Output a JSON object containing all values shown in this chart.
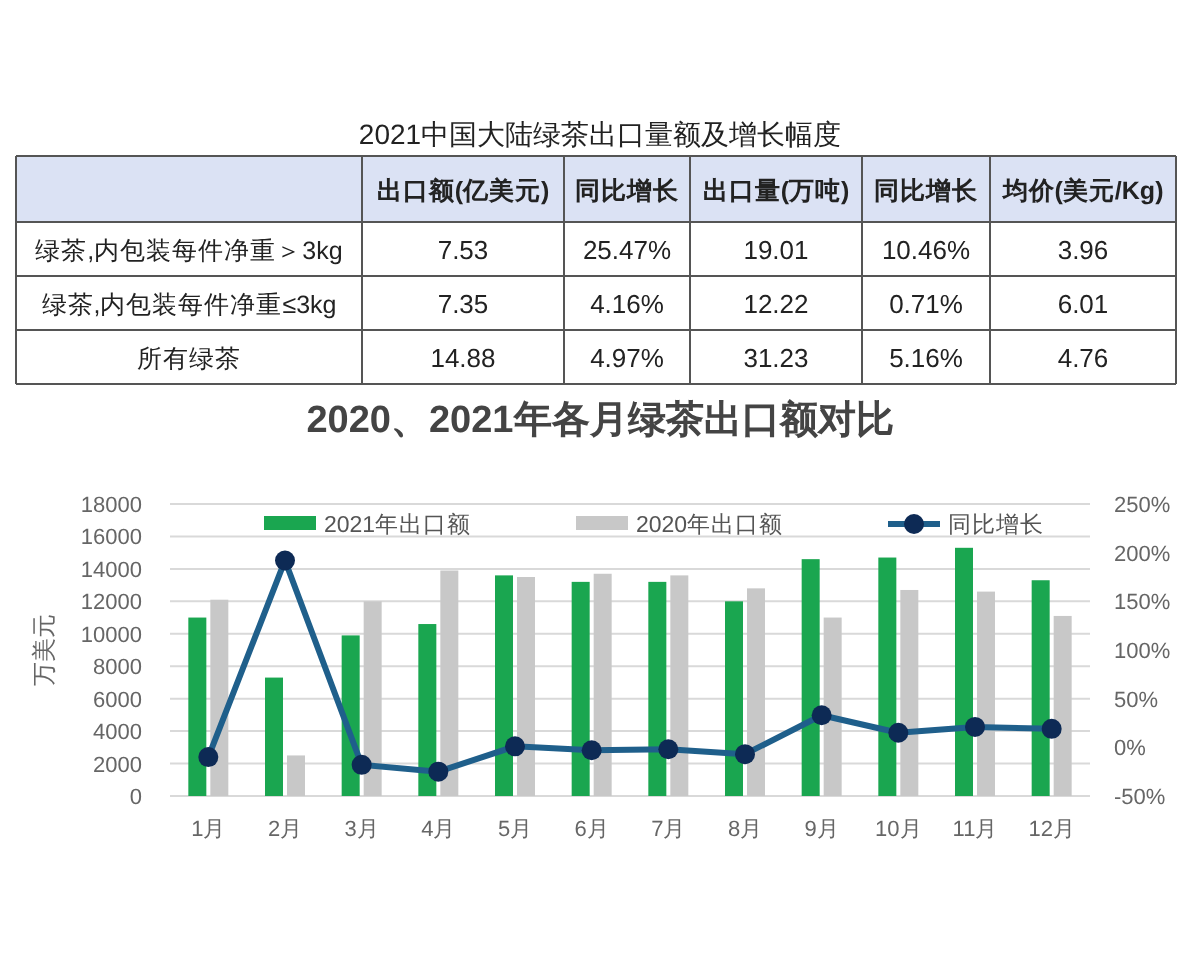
{
  "chart_data": [
    {
      "type": "other",
      "title": "2021中国大陆绿茶出口量额及增长幅度",
      "categories": [
        "出口额(亿美元)",
        "同比增长",
        "出口量(万吨)",
        "同比增长",
        "均价(美元/Kg)"
      ],
      "y_categories": [
        "绿茶,内包装每件净重＞3kg",
        "绿茶,内包装每件净重≤3kg",
        "所有绿茶"
      ],
      "cell_labels": [
        [
          "7.53",
          "25.47%",
          "19.01",
          "10.46%",
          "3.96"
        ],
        [
          "7.35",
          "4.16%",
          "12.22",
          "0.71%",
          "6.01"
        ],
        [
          "14.88",
          "4.97%",
          "31.23",
          "5.16%",
          "4.76"
        ]
      ]
    },
    {
      "type": "bar",
      "title": "2020、2021年各月绿茶出口额对比",
      "ylabel": "万美元",
      "categories": [
        "1月",
        "2月",
        "3月",
        "4月",
        "5月",
        "6月",
        "7月",
        "8月",
        "9月",
        "10月",
        "11月",
        "12月"
      ],
      "series": [
        {
          "name": "2021年出口额",
          "color": "#1aa650",
          "values": [
            11000,
            7300,
            9900,
            10600,
            13600,
            13200,
            13200,
            12000,
            14600,
            14700,
            15300,
            13300
          ]
        },
        {
          "name": "2020年出口额",
          "color": "#c8c8c8",
          "values": [
            12100,
            2500,
            12000,
            13900,
            13500,
            13700,
            13600,
            12800,
            11000,
            12700,
            12600,
            11100
          ]
        },
        {
          "name": "同比增长",
          "type": "line",
          "axis": "y2",
          "color": "#1f5f8b",
          "marker": "circle",
          "values": [
            -10,
            192,
            -18,
            -25,
            1,
            -3,
            -2,
            -7,
            33,
            15,
            21,
            19
          ]
        }
      ],
      "ylim": [
        0,
        18000
      ],
      "yticks": [
        0,
        2000,
        4000,
        6000,
        8000,
        10000,
        12000,
        14000,
        16000,
        18000
      ],
      "y2lim": [
        -50,
        250
      ],
      "y2ticks": [
        {
          "value": -50,
          "label": "-50%"
        },
        {
          "value": 0,
          "label": "0%"
        },
        {
          "value": 50,
          "label": "50%"
        },
        {
          "value": 100,
          "label": "100%"
        },
        {
          "value": 150,
          "label": "150%"
        },
        {
          "value": 200,
          "label": "200%"
        },
        {
          "value": 250,
          "label": "250%"
        }
      ],
      "grid": "y",
      "legend": "top"
    }
  ]
}
